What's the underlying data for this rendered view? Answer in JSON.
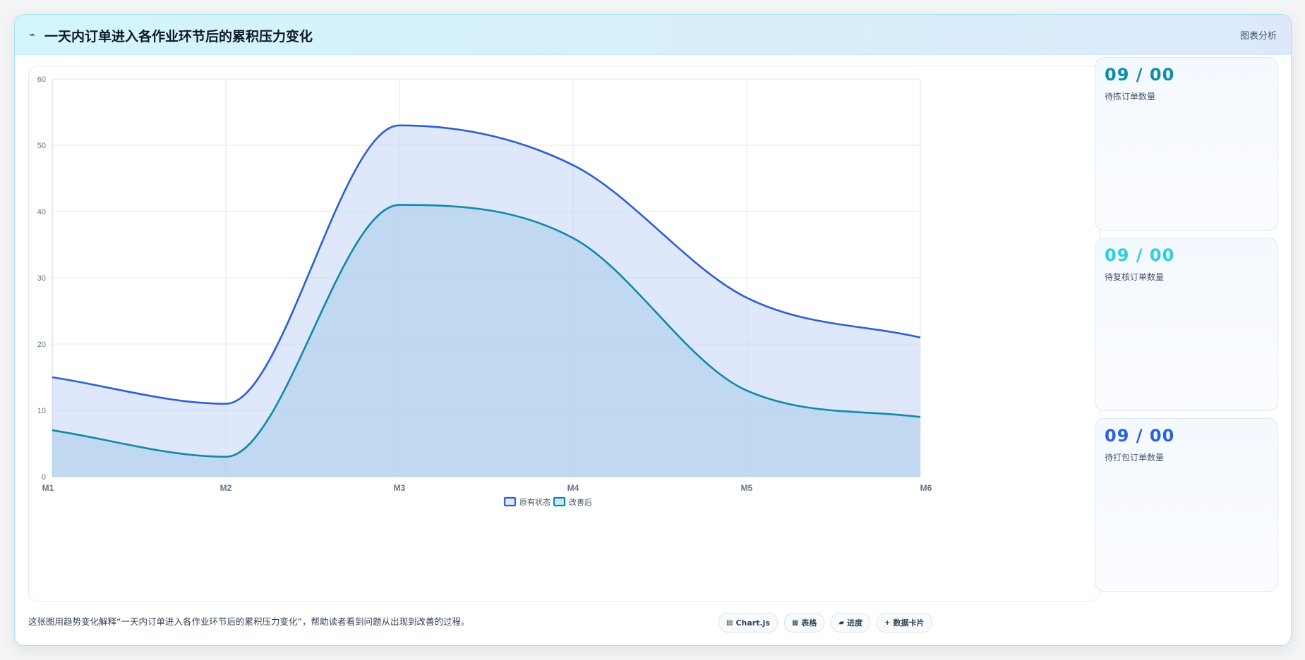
{
  "header": {
    "icon": "pulse-icon",
    "icon_glyph": "⌁",
    "title": "一天内订单进入各作业环节后的累积压力变化",
    "tag": "图表分析"
  },
  "chart_data": {
    "type": "area",
    "title": "",
    "xlabel": "",
    "ylabel": "",
    "categories": [
      "M1",
      "M2",
      "M3",
      "M4",
      "M5",
      "M6"
    ],
    "ylim": [
      0,
      60
    ],
    "yticks": [
      0,
      10,
      20,
      30,
      40,
      50,
      60
    ],
    "grid": true,
    "smooth": true,
    "legend_position": "bottom-center",
    "series": [
      {
        "name": "原有状态",
        "values": [
          15,
          11,
          53,
          47,
          27,
          21
        ],
        "color": "#2c5fd6",
        "fill": "rgba(196,211,245,0.55)"
      },
      {
        "name": "改善后",
        "values": [
          7,
          3,
          41,
          36,
          13,
          9
        ],
        "color": "#0f8aa8",
        "fill": "rgba(165,204,232,0.55)"
      }
    ]
  },
  "cards": [
    {
      "value": "09 / 00",
      "label": "待拣订单数量",
      "color": "#0e8ea6",
      "icon": ""
    },
    {
      "value": "09 / 00",
      "label": "待复核订单数量",
      "color": "#2dcfdf",
      "icon": ""
    },
    {
      "value": "09 / 00",
      "label": "待打包订单数量",
      "color": "#2a62d8",
      "icon": ""
    }
  ],
  "footer": {
    "description": "这张图用趋势变化解释“一天内订单进入各作业环节后的累积压力变化”，帮助读者看到问题从出现到改善的过程。",
    "badges": [
      {
        "icon": "chart-icon",
        "glyph": "▤",
        "label": "Chart.js"
      },
      {
        "icon": "table-icon",
        "glyph": "▦",
        "label": "表格"
      },
      {
        "icon": "progress-icon",
        "glyph": "▰",
        "label": "进度"
      },
      {
        "icon": "plus-icon",
        "glyph": "+",
        "label": "数据卡片"
      }
    ]
  }
}
